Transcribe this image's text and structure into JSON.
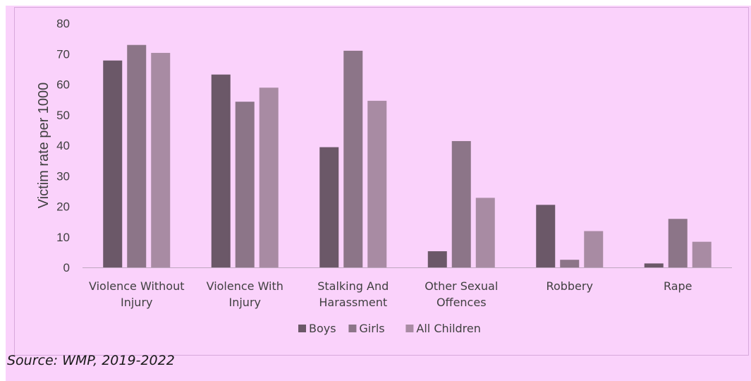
{
  "chart_data": {
    "type": "bar",
    "title": "",
    "xlabel": "",
    "ylabel": "Victim rate per 1000",
    "ylim": [
      0,
      80
    ],
    "yticks": [
      0,
      10,
      20,
      30,
      40,
      50,
      60,
      70,
      80
    ],
    "grid": false,
    "legend_position": "bottom",
    "categories": [
      [
        "Violence Without",
        "Injury"
      ],
      [
        "Violence With",
        "Injury"
      ],
      [
        "Stalking And",
        "Harassment"
      ],
      [
        "Other Sexual",
        "Offences"
      ],
      [
        "Robbery"
      ],
      [
        "Rape"
      ]
    ],
    "series": [
      {
        "name": "Boys",
        "color": "#6b5868",
        "values": [
          67.8,
          63.2,
          39.4,
          5.3,
          20.5,
          1.3
        ]
      },
      {
        "name": "Girls",
        "color": "#8c7588",
        "values": [
          72.9,
          54.3,
          71.0,
          41.4,
          2.5,
          15.9
        ]
      },
      {
        "name": "All Children",
        "color": "#a88ba3",
        "values": [
          70.3,
          58.9,
          54.6,
          22.8,
          11.9,
          8.4
        ]
      }
    ]
  },
  "source_text": "Source: WMP, 2019-2022"
}
